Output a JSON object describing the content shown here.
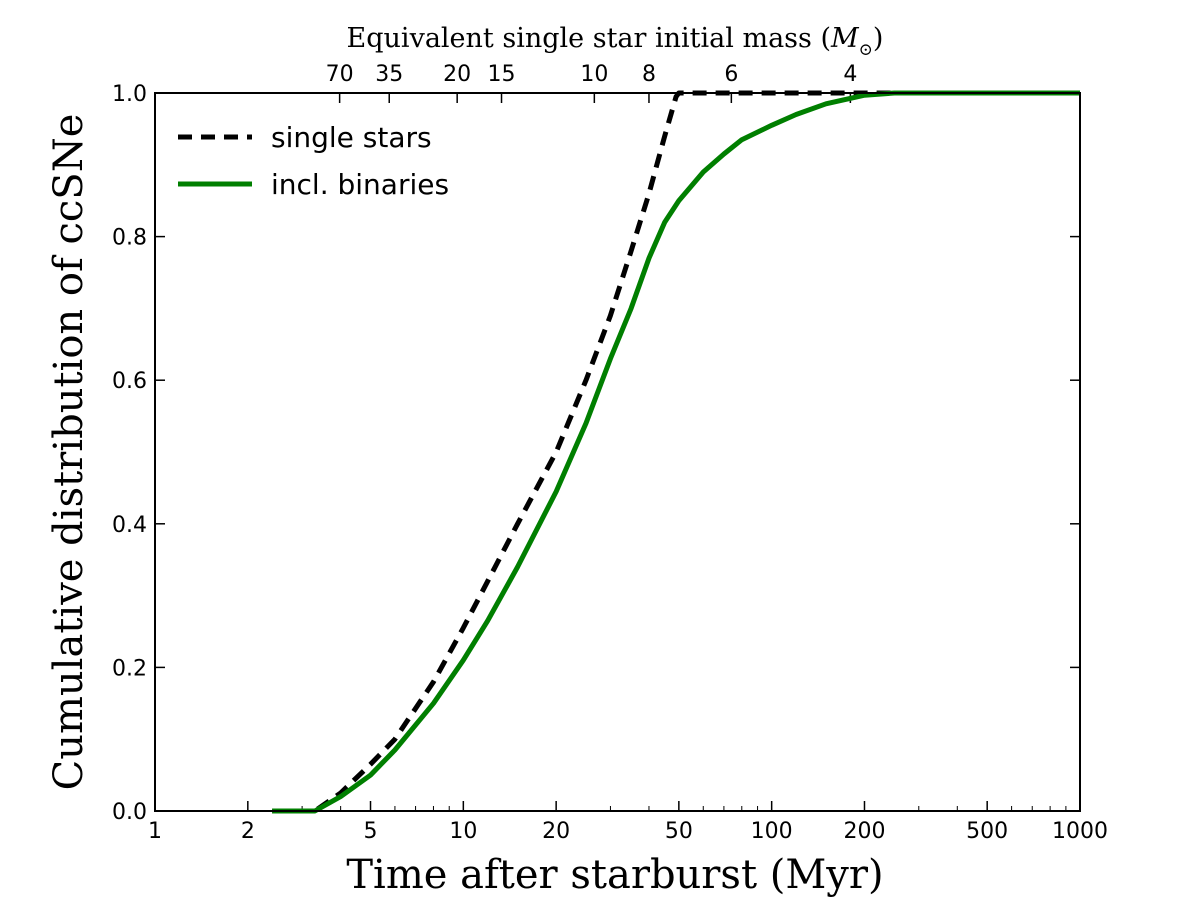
{
  "chart_data": {
    "type": "line",
    "xscale": "log",
    "xlim": [
      1,
      1000
    ],
    "ylim": [
      0,
      1
    ],
    "xlabel": "Time after starburst (Myr)",
    "ylabel": "Cumulative distribution of ccSNe",
    "top_axis_label_text": "Equivalent single star initial mass (",
    "top_axis_label_symbol": "M",
    "top_axis_label_subscript": "⊙",
    "top_axis_label_close": ")",
    "x_ticks": [
      1,
      2,
      5,
      10,
      20,
      50,
      100,
      200,
      500,
      1000
    ],
    "x_tick_labels": [
      "1",
      "2",
      "5",
      "10",
      "20",
      "50",
      "100",
      "200",
      "500",
      "1000"
    ],
    "y_ticks": [
      0,
      0.2,
      0.4,
      0.6,
      0.8,
      1.0
    ],
    "y_tick_labels": [
      "0.0",
      "0.2",
      "0.4",
      "0.6",
      "0.8",
      "1.0"
    ],
    "top_ticks": [
      {
        "time": 3.97,
        "label": "70"
      },
      {
        "time": 5.75,
        "label": "35"
      },
      {
        "time": 9.55,
        "label": "20"
      },
      {
        "time": 13.3,
        "label": "15"
      },
      {
        "time": 26.6,
        "label": "10"
      },
      {
        "time": 40.0,
        "label": "8"
      },
      {
        "time": 74.0,
        "label": "6"
      },
      {
        "time": 180.0,
        "label": "4"
      }
    ],
    "legend_position": "upper-left",
    "series": [
      {
        "name": "single stars",
        "style": "dashed",
        "color": "#000000",
        "x": [
          2.4,
          3.3,
          4.0,
          5.0,
          6.0,
          8.0,
          10.0,
          12.0,
          15.0,
          20.0,
          25.0,
          30.0,
          35.0,
          40.0,
          45.0,
          49.0,
          50.0,
          100.0,
          200.0,
          1000.0
        ],
        "y": [
          0.0,
          0.0,
          0.025,
          0.065,
          0.1,
          0.18,
          0.255,
          0.32,
          0.4,
          0.5,
          0.6,
          0.69,
          0.78,
          0.86,
          0.94,
          0.995,
          1.0,
          1.0,
          1.0,
          1.0
        ]
      },
      {
        "name": "incl. binaries",
        "style": "solid",
        "color": "#007f00",
        "x": [
          2.4,
          3.3,
          4.0,
          5.0,
          6.0,
          8.0,
          10.0,
          12.0,
          15.0,
          20.0,
          25.0,
          30.0,
          35.0,
          40.0,
          45.0,
          50.0,
          60.0,
          70.0,
          80.0,
          100.0,
          120.0,
          150.0,
          200.0,
          250.0,
          1000.0
        ],
        "y": [
          0.0,
          0.0,
          0.02,
          0.05,
          0.085,
          0.15,
          0.21,
          0.265,
          0.34,
          0.445,
          0.54,
          0.63,
          0.7,
          0.77,
          0.82,
          0.85,
          0.89,
          0.915,
          0.935,
          0.955,
          0.97,
          0.985,
          0.997,
          1.0,
          1.0
        ]
      }
    ]
  }
}
